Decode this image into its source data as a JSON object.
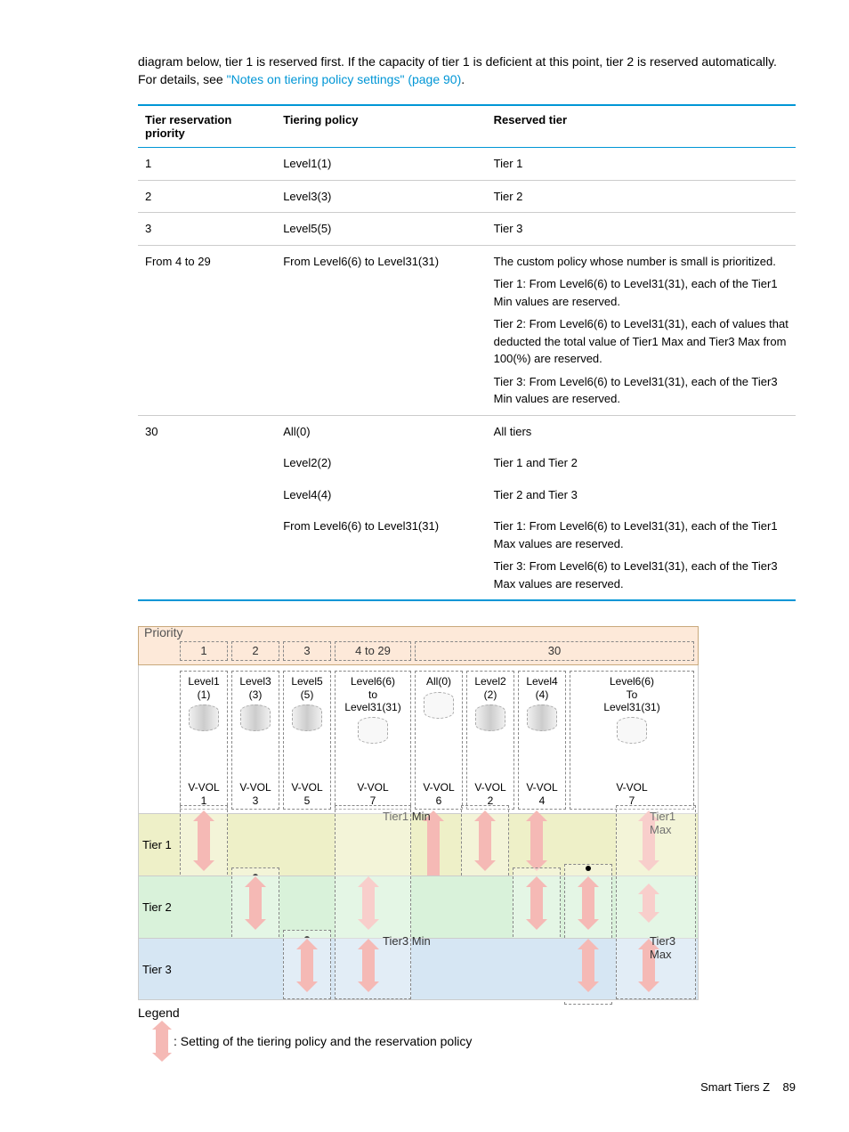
{
  "intro": {
    "text_before_link": "diagram below, tier 1 is reserved first. If the capacity of tier 1 is deficient at this point, tier 2 is reserved automatically. For details, see ",
    "link_text": "\"Notes on tiering policy settings\" (page 90)",
    "text_after_link": "."
  },
  "table": {
    "headers": {
      "col1": "Tier reservation priority",
      "col2": "Tiering policy",
      "col3": "Reserved tier"
    },
    "row1": {
      "c1": "1",
      "c2": "Level1(1)",
      "c3": "Tier 1"
    },
    "row2": {
      "c1": "2",
      "c2": "Level3(3)",
      "c3": "Tier 2"
    },
    "row3": {
      "c1": "3",
      "c2": "Level5(5)",
      "c3": "Tier 3"
    },
    "row4": {
      "c1": "From 4 to 29",
      "c2": "From Level6(6) to Level31(31)",
      "c3p1": "The custom policy whose number is small is prioritized.",
      "c3p2": "Tier 1: From Level6(6) to Level31(31), each of the Tier1 Min values are reserved.",
      "c3p3": "Tier 2: From Level6(6) to Level31(31), each of values that deducted the total value of Tier1 Max and Tier3 Max from 100(%) are reserved.",
      "c3p4": "Tier 3: From Level6(6) to Level31(31), each of the Tier3 Min values are reserved."
    },
    "row5": {
      "c1": "30",
      "r5a_c2": "All(0)",
      "r5a_c3": "All tiers",
      "r5b_c2": "Level2(2)",
      "r5b_c3": "Tier 1 and Tier 2",
      "r5c_c2": "Level4(4)",
      "r5c_c3": "Tier 2 and Tier 3",
      "r5d_c2": "From Level6(6) to Level31(31)",
      "r5d_c3p1": "Tier 1: From Level6(6) to Level31(31), each of the Tier1 Max values are reserved.",
      "r5d_c3p2": "Tier 3: From Level6(6) to Level31(31), each of the Tier3 Max values are reserved."
    }
  },
  "diagram": {
    "priority_label": "Priority",
    "priorities": {
      "p1": "1",
      "p2": "2",
      "p3": "3",
      "p4": "4 to 29",
      "p5": "30"
    },
    "levels": {
      "l1": "Level1\n(1)",
      "l2": "Level3\n(3)",
      "l3": "Level5\n(5)",
      "l4": "Level6(6)\nto\nLevel31(31)",
      "l5": "All(0)",
      "l6": "Level2\n(2)",
      "l7": "Level4\n(4)",
      "l8": "Level6(6)\nTo\nLevel31(31)"
    },
    "vvols": {
      "v1": "V-VOL\n1",
      "v2": "V-VOL\n3",
      "v3": "V-VOL\n5",
      "v4": "V-VOL\n7",
      "v5": "V-VOL\n6",
      "v6": "V-VOL\n2",
      "v7": "V-VOL\n4",
      "v8": "V-VOL\n7"
    },
    "tiers": {
      "t1": "Tier 1",
      "t2": "Tier 2",
      "t3": "Tier 3"
    },
    "band_labels": {
      "t1min": "Tier1 Min",
      "t1max": "Tier1 Max",
      "t3min": "Tier3 Min",
      "t3max": "Tier3 Max"
    },
    "colors": {
      "priority_bg": "#fde9d9",
      "tier1_bg": "#eef0c8",
      "tier2_bg": "#d9f2da",
      "tier3_bg": "#d6e6f3",
      "arrow_fill": "#f5b9b5",
      "link_color": "#0096d6",
      "table_border": "#0096d6"
    }
  },
  "legend": {
    "title": "Legend",
    "text": ": Setting of the tiering policy and the reservation policy"
  },
  "footer": {
    "text": "Smart Tiers Z",
    "page": "89"
  }
}
